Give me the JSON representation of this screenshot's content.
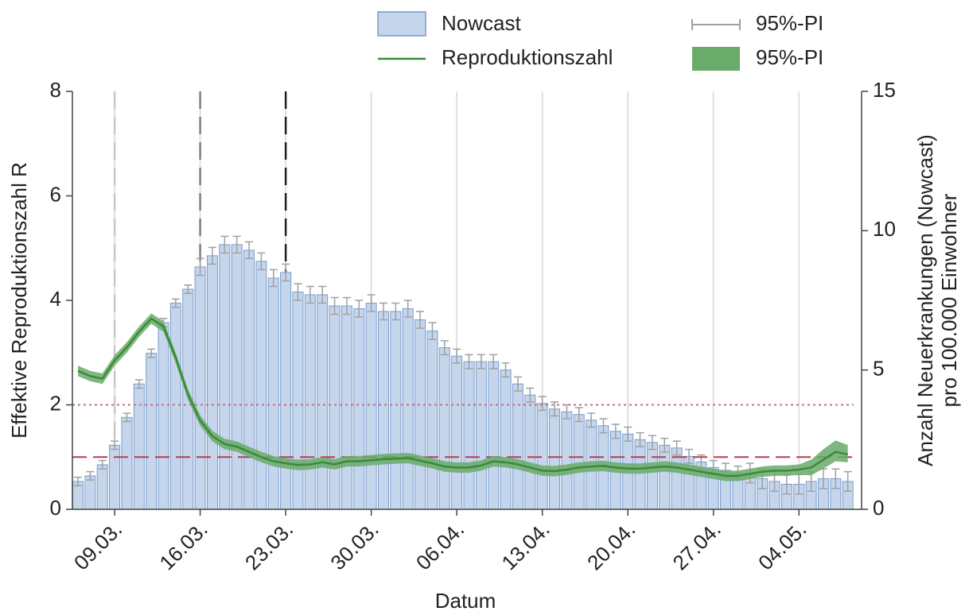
{
  "chart_data": {
    "type": "bar_line",
    "x_label": "Datum",
    "y_label": "Effektive Reproduktionszahl R",
    "y2_label": [
      "Anzahl Neuerkrankungen (Nowcast)",
      "pro 100.000 Einwohner"
    ],
    "categories": [
      null,
      null,
      null,
      "09.03.",
      null,
      null,
      null,
      null,
      null,
      null,
      "16.03.",
      null,
      null,
      null,
      null,
      null,
      null,
      "23.03.",
      null,
      null,
      null,
      null,
      null,
      null,
      "30.03.",
      null,
      null,
      null,
      null,
      null,
      null,
      "06.04.",
      null,
      null,
      null,
      null,
      null,
      null,
      "13.04.",
      null,
      null,
      null,
      null,
      null,
      null,
      "20.04.",
      null,
      null,
      null,
      null,
      null,
      null,
      "27.04.",
      null,
      null,
      null,
      null,
      null,
      null,
      "04.05.",
      null,
      null,
      null,
      null
    ],
    "ylim": [
      0,
      8
    ],
    "yticks": [
      0,
      2,
      4,
      6,
      8
    ],
    "y2lim": [
      0,
      15
    ],
    "y2ticks": [
      0,
      5,
      10,
      15
    ],
    "grid_x": true,
    "series": [
      {
        "name": "Nowcast",
        "axis": "y2",
        "kind": "bar",
        "color": "#c5d6ec",
        "edge": "#7a9ccc",
        "values": [
          1.0,
          1.2,
          1.6,
          2.3,
          3.3,
          4.5,
          5.6,
          6.7,
          7.4,
          7.9,
          8.7,
          9.1,
          9.5,
          9.5,
          9.3,
          8.9,
          8.3,
          8.5,
          7.8,
          7.7,
          7.7,
          7.3,
          7.3,
          7.2,
          7.4,
          7.1,
          7.1,
          7.2,
          6.8,
          6.4,
          5.8,
          5.5,
          5.3,
          5.3,
          5.3,
          5.0,
          4.5,
          4.1,
          3.8,
          3.6,
          3.5,
          3.4,
          3.2,
          3.0,
          2.8,
          2.7,
          2.5,
          2.4,
          2.3,
          2.2,
          1.9,
          1.7,
          1.5,
          1.4,
          1.3,
          1.3,
          1.1,
          1.0,
          0.9,
          0.9,
          1.0,
          1.1,
          1.1,
          1.0
        ],
        "error_name": "95%-PI",
        "error_color": "#a0a0a0",
        "errors": [
          0.15,
          0.15,
          0.15,
          0.15,
          0.15,
          0.15,
          0.15,
          0.15,
          0.15,
          0.15,
          0.3,
          0.3,
          0.3,
          0.3,
          0.3,
          0.3,
          0.3,
          0.3,
          0.3,
          0.3,
          0.3,
          0.3,
          0.3,
          0.3,
          0.3,
          0.3,
          0.3,
          0.3,
          0.3,
          0.3,
          0.25,
          0.25,
          0.25,
          0.25,
          0.25,
          0.25,
          0.25,
          0.25,
          0.25,
          0.25,
          0.25,
          0.25,
          0.25,
          0.25,
          0.25,
          0.25,
          0.25,
          0.25,
          0.25,
          0.25,
          0.25,
          0.25,
          0.25,
          0.25,
          0.25,
          0.35,
          0.35,
          0.35,
          0.35,
          0.35,
          0.35,
          0.35,
          0.35,
          0.35
        ]
      },
      {
        "name": "Reproduktionszahl",
        "kind": "line",
        "color": "#3a8a3a",
        "values": [
          2.65,
          2.55,
          2.5,
          2.85,
          3.1,
          3.4,
          3.65,
          3.5,
          2.9,
          2.2,
          1.7,
          1.4,
          1.25,
          1.2,
          1.1,
          1.0,
          0.92,
          0.88,
          0.85,
          0.86,
          0.9,
          0.86,
          0.92,
          0.92,
          0.94,
          0.96,
          0.97,
          0.98,
          0.93,
          0.88,
          0.82,
          0.8,
          0.8,
          0.84,
          0.92,
          0.9,
          0.86,
          0.8,
          0.74,
          0.73,
          0.76,
          0.8,
          0.82,
          0.83,
          0.8,
          0.78,
          0.78,
          0.8,
          0.82,
          0.8,
          0.76,
          0.72,
          0.68,
          0.64,
          0.64,
          0.68,
          0.72,
          0.74,
          0.74,
          0.76,
          0.8,
          0.95,
          1.1,
          1.05
        ],
        "band_name": "95%-PI",
        "band_color": "#6aaa6a",
        "upper": [
          2.75,
          2.65,
          2.6,
          2.95,
          3.2,
          3.5,
          3.75,
          3.6,
          3.0,
          2.3,
          1.8,
          1.5,
          1.35,
          1.3,
          1.2,
          1.1,
          1.02,
          0.98,
          0.95,
          0.96,
          1.0,
          0.96,
          1.02,
          1.02,
          1.04,
          1.06,
          1.07,
          1.08,
          1.03,
          0.98,
          0.92,
          0.9,
          0.9,
          0.94,
          1.02,
          1.0,
          0.96,
          0.9,
          0.84,
          0.83,
          0.86,
          0.9,
          0.92,
          0.93,
          0.9,
          0.88,
          0.88,
          0.9,
          0.92,
          0.9,
          0.86,
          0.82,
          0.78,
          0.74,
          0.74,
          0.78,
          0.82,
          0.84,
          0.84,
          0.86,
          0.95,
          1.15,
          1.32,
          1.23
        ],
        "lower": [
          2.55,
          2.45,
          2.4,
          2.75,
          3.0,
          3.3,
          3.55,
          3.4,
          2.8,
          2.1,
          1.6,
          1.3,
          1.15,
          1.1,
          1.0,
          0.9,
          0.82,
          0.78,
          0.75,
          0.76,
          0.8,
          0.76,
          0.82,
          0.82,
          0.84,
          0.86,
          0.87,
          0.88,
          0.83,
          0.78,
          0.72,
          0.7,
          0.7,
          0.74,
          0.82,
          0.8,
          0.76,
          0.7,
          0.64,
          0.63,
          0.66,
          0.7,
          0.72,
          0.73,
          0.7,
          0.68,
          0.68,
          0.7,
          0.72,
          0.7,
          0.66,
          0.62,
          0.58,
          0.54,
          0.54,
          0.58,
          0.62,
          0.64,
          0.64,
          0.66,
          0.65,
          0.78,
          0.92,
          0.9
        ]
      }
    ],
    "hlines": [
      {
        "y": 1,
        "color": "#b04050",
        "dash": "18 8"
      },
      {
        "y": 2,
        "color": "#c07080",
        "dash": "3 4"
      }
    ],
    "vlines": [
      {
        "x": "09.03.",
        "color": "#c8c8c8"
      },
      {
        "x": "16.03.",
        "color": "#808080"
      },
      {
        "x": "23.03.",
        "color": "#202020"
      }
    ]
  }
}
